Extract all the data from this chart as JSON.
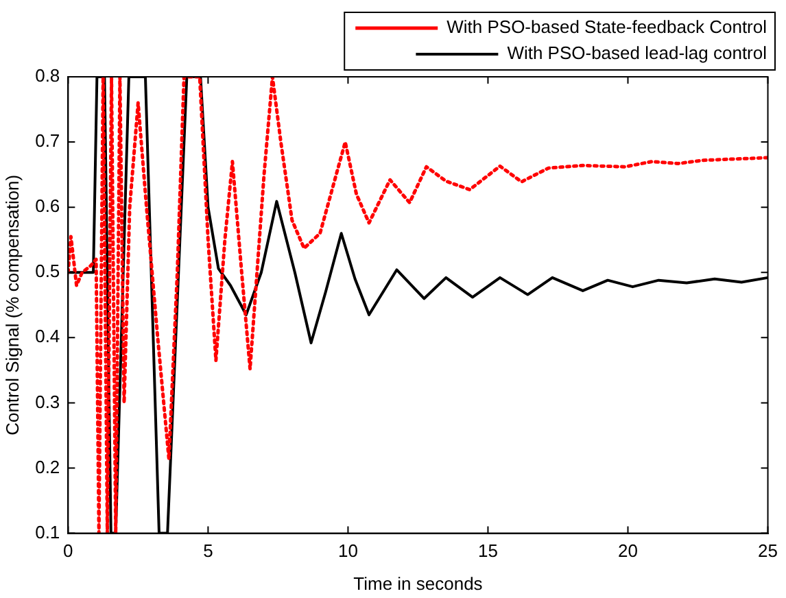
{
  "chart_data": {
    "type": "line",
    "xlabel": "Time in seconds",
    "ylabel": "Control Signal (% compensation)",
    "xlim": [
      0,
      25
    ],
    "ylim": [
      0.1,
      0.8
    ],
    "xticks": [
      0,
      5,
      10,
      15,
      20,
      25
    ],
    "yticks": [
      0.1,
      0.2,
      0.3,
      0.4,
      0.5,
      0.6,
      0.7,
      0.8
    ],
    "grid": false,
    "legend": "top right",
    "marker": "none",
    "series": [
      {
        "name": "With PSO-based State-feedback Control",
        "color": "#ff0000",
        "line_style": "dotted",
        "x": [
          0,
          0.1,
          0.3,
          0.5,
          0.8,
          1.0,
          1.1,
          1.25,
          1.4,
          1.55,
          1.7,
          1.85,
          2.0,
          2.2,
          2.5,
          2.8,
          3.2,
          3.6,
          3.9,
          4.14,
          4.7,
          5.0,
          5.28,
          5.6,
          5.87,
          6.2,
          6.5,
          7.0,
          7.3,
          7.6,
          8.0,
          8.43,
          9.0,
          9.9,
          10.3,
          10.75,
          11.5,
          12.2,
          12.8,
          13.5,
          14.35,
          15.43,
          16.2,
          17.16,
          18.4,
          19.9,
          20.85,
          21.8,
          22.7,
          25
        ],
        "values": [
          0.5,
          0.555,
          0.48,
          0.5,
          0.51,
          0.52,
          0.1,
          0.8,
          0.1,
          0.8,
          0.1,
          0.8,
          0.3,
          0.6,
          0.76,
          0.6,
          0.4,
          0.214,
          0.5,
          0.8,
          0.8,
          0.55,
          0.365,
          0.55,
          0.67,
          0.5,
          0.352,
          0.65,
          0.8,
          0.7,
          0.58,
          0.537,
          0.56,
          0.7,
          0.62,
          0.576,
          0.642,
          0.607,
          0.662,
          0.64,
          0.627,
          0.663,
          0.639,
          0.66,
          0.664,
          0.662,
          0.67,
          0.667,
          0.672,
          0.676
        ]
      },
      {
        "name": "With PSO-based lead-lag control",
        "color": "#000000",
        "line_style": "solid",
        "x": [
          0,
          0.9,
          1.03,
          1.3,
          1.53,
          1.7,
          2.17,
          2.76,
          3.25,
          3.55,
          4.24,
          4.73,
          5.0,
          5.37,
          5.8,
          6.36,
          6.9,
          7.45,
          8.1,
          8.68,
          9.2,
          9.76,
          10.25,
          10.75,
          11.74,
          12.72,
          13.5,
          14.45,
          15.43,
          16.42,
          17.3,
          18.39,
          19.28,
          20.17,
          21.1,
          22.1,
          23.1,
          24.06,
          25
        ],
        "values": [
          0.5,
          0.5,
          0.8,
          0.8,
          0.1,
          0.1,
          0.8,
          0.8,
          0.1,
          0.1,
          0.8,
          0.8,
          0.6,
          0.506,
          0.48,
          0.435,
          0.5,
          0.609,
          0.5,
          0.392,
          0.47,
          0.56,
          0.49,
          0.435,
          0.504,
          0.46,
          0.492,
          0.462,
          0.492,
          0.466,
          0.492,
          0.472,
          0.488,
          0.478,
          0.488,
          0.484,
          0.49,
          0.485,
          0.492
        ]
      }
    ]
  }
}
